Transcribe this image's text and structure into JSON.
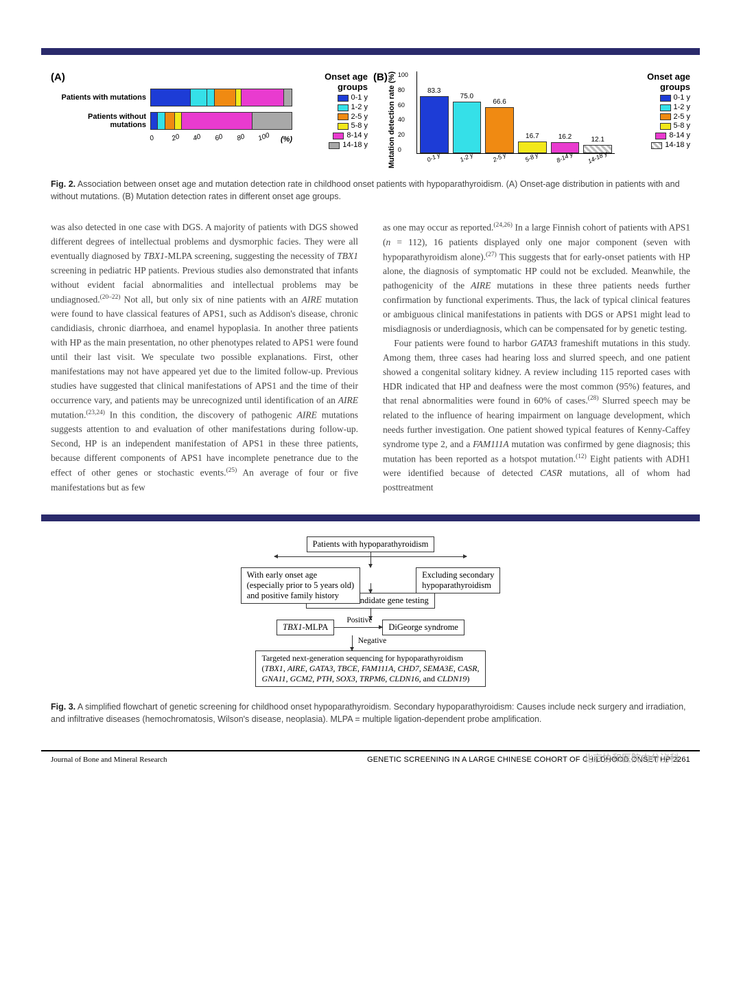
{
  "fig2": {
    "panelA": {
      "label": "(A)",
      "legend_title": "Onset age groups",
      "legend": [
        {
          "label": "0-1 y",
          "color": "#1d3cd6"
        },
        {
          "label": "1-2 y",
          "color": "#35e0e8"
        },
        {
          "label": "2-5 y",
          "color": "#f08a12"
        },
        {
          "label": "5-8 y",
          "color": "#f2e81a"
        },
        {
          "label": "8-14 y",
          "color": "#e93bcf"
        },
        {
          "label": "14-18 y",
          "color": "#a8a8a8"
        }
      ],
      "rows": [
        {
          "label": "Patients with mutations",
          "segments": [
            28,
            12,
            5,
            15,
            4,
            30,
            6
          ]
        },
        {
          "label": "Patients without mutations",
          "segments": [
            5,
            5,
            7,
            5,
            50,
            28
          ]
        }
      ],
      "seg_colors_row1": [
        "#1d3cd6",
        "#35e0e8",
        "#35e0e8",
        "#f08a12",
        "#f2e81a",
        "#e93bcf",
        "#a8a8a8"
      ],
      "seg_colors_row2": [
        "#1d3cd6",
        "#35e0e8",
        "#f08a12",
        "#f2e81a",
        "#e93bcf",
        "#a8a8a8"
      ],
      "xticks": [
        "0",
        "20",
        "40",
        "60",
        "80",
        "100"
      ],
      "xunit": "(%)"
    },
    "panelB": {
      "label": "(B)",
      "legend_title": "Onset age groups",
      "ylabel": "Mutation detection rate (%)",
      "ylim": [
        0,
        100
      ],
      "yticks": [
        "0",
        "20",
        "40",
        "60",
        "80",
        "100"
      ],
      "bars": [
        {
          "label": "0-1 y",
          "value": 83.3,
          "color": "#1d3cd6",
          "display": "83.3"
        },
        {
          "label": "1-2 y",
          "value": 75.0,
          "color": "#35e0e8",
          "display": "75.0"
        },
        {
          "label": "2-5 y",
          "value": 66.6,
          "color": "#f08a12",
          "display": "66.6"
        },
        {
          "label": "5-8 y",
          "value": 16.7,
          "color": "#f2e81a",
          "display": "16.7"
        },
        {
          "label": "8-14 y",
          "value": 16.2,
          "color": "#e93bcf",
          "display": "16.2"
        },
        {
          "label": "14-18 y",
          "value": 12.1,
          "color": "hatched",
          "display": "12.1"
        }
      ]
    },
    "caption_bold": "Fig. 2.",
    "caption_text": " Association between onset age and mutation detection rate in childhood onset patients with hypoparathyroidism. (A) Onset-age distribution in patients with and without mutations. (B) Mutation detection rates in different onset age groups."
  },
  "body": {
    "col1": "was also detected in one case with DGS. A majority of patients with DGS showed different degrees of intellectual problems and dysmorphic facies. They were all eventually diagnosed by TBX1-MLPA screening, suggesting the necessity of TBX1 screening in pediatric HP patients. Previous studies also demonstrated that infants without evident facial abnormalities and intellectual problems may be undiagnosed.(20–22) Not all, but only six of nine patients with an AIRE mutation were found to have classical features of APS1, such as Addison's disease, chronic candidiasis, chronic diarrhoea, and enamel hypoplasia. In another three patients with HP as the main presentation, no other phenotypes related to APS1 were found until their last visit. We speculate two possible explanations. First, other manifestations may not have appeared yet due to the limited follow-up. Previous studies have suggested that clinical manifestations of APS1 and the time of their occurrence vary, and patients may be unrecognized until identification of an AIRE mutation.(23,24) In this condition, the discovery of pathogenic AIRE mutations suggests attention to and evaluation of other manifestations during follow-up. Second, HP is an independent manifestation of APS1 in these three patients, because different components of APS1 have incomplete penetrance due to the effect of other genes or stochastic events.(25) An average of four or five manifestations but as few",
    "col2_p1": "as one may occur as reported.(24,26) In a large Finnish cohort of patients with APS1 (n = 112), 16 patients displayed only one major component (seven with hypoparathyroidism alone).(27) This suggests that for early-onset patients with HP alone, the diagnosis of symptomatic HP could not be excluded. Meanwhile, the pathogenicity of the AIRE mutations in these three patients needs further confirmation by functional experiments. Thus, the lack of typical clinical features or ambiguous clinical manifestations in patients with DGS or APS1 might lead to misdiagnosis or underdiagnosis, which can be compensated for by genetic testing.",
    "col2_p2": "Four patients were found to harbor GATA3 frameshift mutations in this study. Among them, three cases had hearing loss and slurred speech, and one patient showed a congenital solitary kidney. A review including 115 reported cases with HDR indicated that HP and deafness were the most common (95%) features, and that renal abnormalities were found in 60% of cases.(28) Slurred speech may be related to the influence of hearing impairment on language development, which needs further investigation. One patient showed typical features of Kenny-Caffey syndrome type 2, and a FAM111A mutation was confirmed by gene diagnosis; this mutation has been reported as a hotspot mutation.(12) Eight patients with ADH1 were identified because of detected CASR mutations, all of whom had posttreatment"
  },
  "fig3": {
    "nodes": {
      "start": "Patients with hypoparathyroidism",
      "exclude": "Excluding secondary\nhypoparathyroidism",
      "early": "With early onset age\n(especially prior to 5 years old)\nand positive family history",
      "chosen": "Chosen for candidate gene testing",
      "tbx1": "TBX1-MLPA",
      "digeorge": "DiGeorge syndrome",
      "ngs": "Targeted next-generation sequencing for hypoparathyroidism\n(TBX1, AIRE, GATA3, TBCE, FAM111A, CHD7, SEMA3E, CASR,\nGNA11, GCM2, PTH, SOX3, TRPM6, CLDN16, and CLDN19)"
    },
    "edge_labels": {
      "positive": "Positive",
      "negative": "Negative"
    },
    "caption_bold": "Fig. 3.",
    "caption_text": " A simplified flowchart of genetic screening for childhood onset hypoparathyroidism. Secondary hypoparathyroidism: Causes include neck surgery and irradiation, and infiltrative diseases (hemochromatosis, Wilson's disease, neoplasia). MLPA = multiple ligation-dependent probe amplification."
  },
  "footer": {
    "left": "Journal of Bone and Mineral Research",
    "right": "GENETIC SCREENING IN A LARGE CHINESE COHORT OF CHILDHOOD ONSET HP   2261",
    "watermark": "北京协和医院内分泌科"
  }
}
